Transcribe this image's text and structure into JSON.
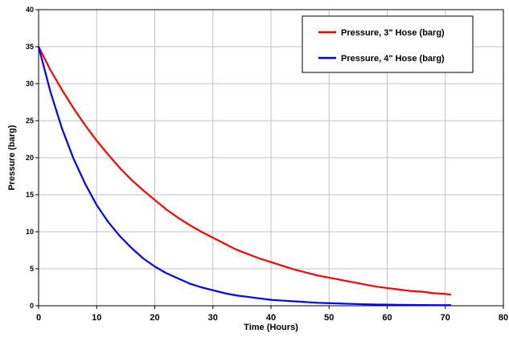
{
  "chart_data": {
    "type": "line",
    "xlabel": "Time (Hours)",
    "ylabel": "Pressure (barg)",
    "xlim": [
      0,
      80
    ],
    "ylim": [
      0,
      40
    ],
    "xticks": [
      0,
      10,
      20,
      30,
      40,
      50,
      60,
      70,
      80
    ],
    "yticks": [
      0,
      5,
      10,
      15,
      20,
      25,
      30,
      35,
      40
    ],
    "grid": true,
    "legend_position": "top-right",
    "series": [
      {
        "name": "Pressure, 3\" Hose (barg)",
        "color": "#ff0000",
        "x": [
          0,
          2,
          4,
          6,
          8,
          10,
          12,
          14,
          16,
          18,
          20,
          22,
          24,
          26,
          28,
          30,
          32,
          34,
          36,
          38,
          40,
          42,
          44,
          46,
          48,
          50,
          52,
          54,
          56,
          58,
          60,
          62,
          64,
          66,
          68,
          70,
          71
        ],
        "y": [
          35,
          31.9,
          29.2,
          26.7,
          24.4,
          22.3,
          20.4,
          18.6,
          17.0,
          15.6,
          14.3,
          13.0,
          11.9,
          10.9,
          10.0,
          9.2,
          8.4,
          7.6,
          7.0,
          6.4,
          5.9,
          5.4,
          4.9,
          4.5,
          4.1,
          3.8,
          3.5,
          3.2,
          2.9,
          2.6,
          2.4,
          2.2,
          2.0,
          1.9,
          1.7,
          1.6,
          1.5
        ]
      },
      {
        "name": "Pressure, 4\" Hose (barg)",
        "color": "#0000ff",
        "x": [
          0,
          2,
          4,
          6,
          8,
          10,
          12,
          14,
          16,
          18,
          20,
          22,
          24,
          26,
          28,
          30,
          32,
          34,
          36,
          38,
          40,
          42,
          44,
          46,
          48,
          50,
          52,
          54,
          56,
          58,
          60,
          62,
          64,
          66,
          68,
          70,
          71
        ],
        "y": [
          35,
          29.0,
          24.0,
          19.9,
          16.5,
          13.6,
          11.3,
          9.4,
          7.8,
          6.4,
          5.3,
          4.4,
          3.7,
          3.0,
          2.5,
          2.1,
          1.7,
          1.4,
          1.2,
          1.0,
          0.8,
          0.7,
          0.6,
          0.5,
          0.4,
          0.35,
          0.3,
          0.25,
          0.2,
          0.17,
          0.15,
          0.13,
          0.11,
          0.1,
          0.09,
          0.08,
          0.08
        ]
      }
    ]
  }
}
